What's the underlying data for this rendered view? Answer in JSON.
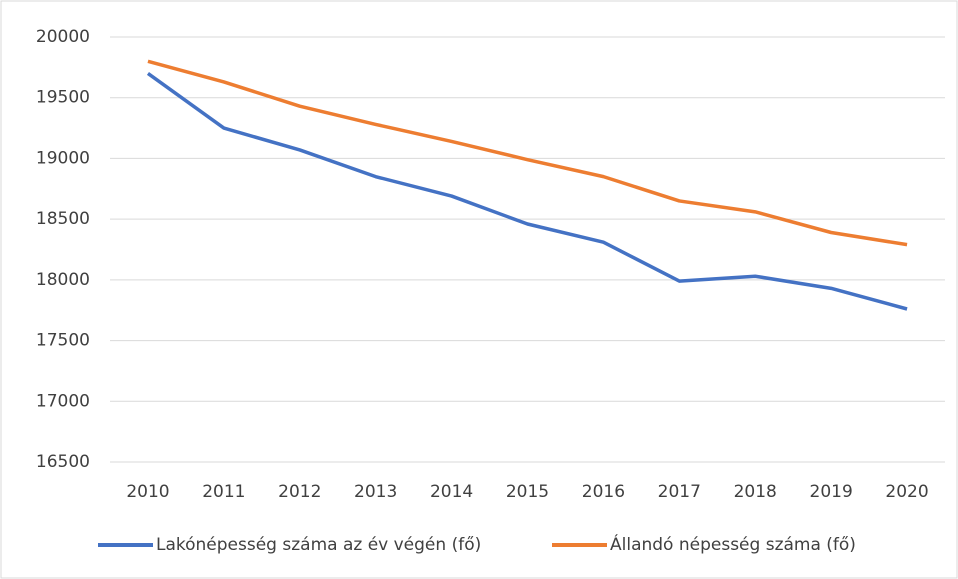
{
  "chart_data": {
    "type": "line",
    "categories": [
      "2010",
      "2011",
      "2012",
      "2013",
      "2014",
      "2015",
      "2016",
      "2017",
      "2018",
      "2019",
      "2020"
    ],
    "series": [
      {
        "name": "Lakónépesség száma az év végén (fő)",
        "color": "#4472c4",
        "values": [
          19700,
          19250,
          19070,
          18850,
          18690,
          18460,
          18310,
          17990,
          18030,
          17930,
          17760
        ]
      },
      {
        "name": "Állandó népesség száma (fő)",
        "color": "#ed7d31",
        "values": [
          19800,
          19630,
          19430,
          19280,
          19140,
          18990,
          18850,
          18650,
          18560,
          18390,
          18290
        ]
      }
    ],
    "ylim": [
      16500,
      20000
    ],
    "yticks": [
      16500,
      17000,
      17500,
      18000,
      18500,
      19000,
      19500,
      20000
    ],
    "grid": true,
    "legend": "bottom"
  }
}
